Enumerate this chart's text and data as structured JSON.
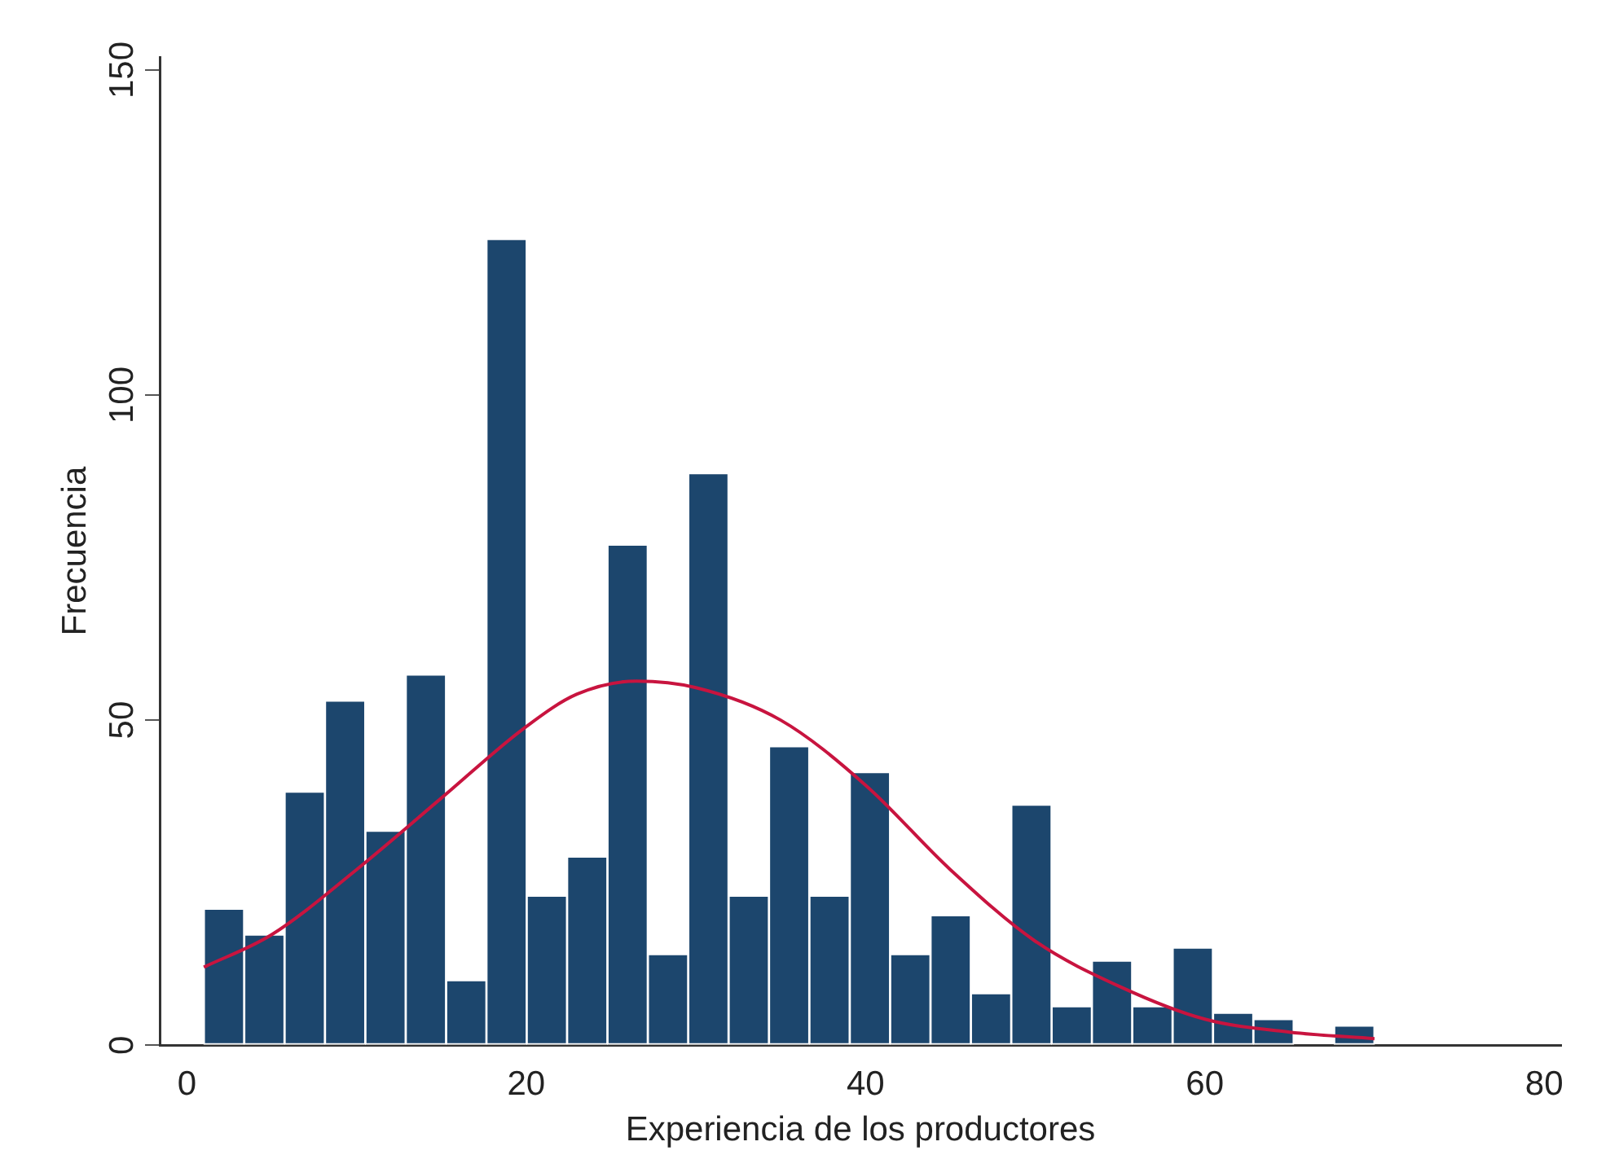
{
  "chart_data": {
    "type": "histogram",
    "xlabel": "Experiencia de los productores",
    "ylabel": "Frecuencia",
    "xlim": [
      -1.6,
      81
    ],
    "xticks": [
      0,
      20,
      40,
      60,
      80
    ],
    "ylim": [
      0,
      152
    ],
    "yticks": [
      0,
      50,
      100,
      150
    ],
    "grid": false,
    "legend": false,
    "series": [
      {
        "type": "histogram",
        "color": "#1c466d",
        "bins": [
          1,
          3.38,
          5.76,
          8.14,
          10.52,
          12.9,
          15.28,
          17.66,
          20.03,
          22.41,
          24.79,
          27.17,
          29.55,
          31.93,
          34.31,
          36.69,
          39.07,
          41.45,
          43.83,
          46.21,
          48.59,
          50.97,
          53.34,
          55.72,
          58.1,
          60.48,
          62.86,
          65.24,
          67.62,
          70
        ],
        "values": [
          21,
          17,
          39,
          53,
          33,
          57,
          10,
          124,
          23,
          29,
          77,
          14,
          88,
          23,
          46,
          23,
          42,
          14,
          20,
          8,
          37,
          6,
          13,
          6,
          15,
          5,
          4,
          0,
          3
        ]
      },
      {
        "type": "line",
        "color": "#c8143f",
        "marker": "none",
        "x": [
          1,
          5,
          10,
          15,
          20,
          23,
          26.5,
          30,
          35,
          40,
          45,
          50,
          55,
          60,
          65,
          70
        ],
        "values": [
          12,
          17,
          27,
          38,
          49,
          54,
          56,
          55,
          50,
          40,
          27,
          16,
          9,
          4,
          2,
          1
        ]
      }
    ]
  }
}
